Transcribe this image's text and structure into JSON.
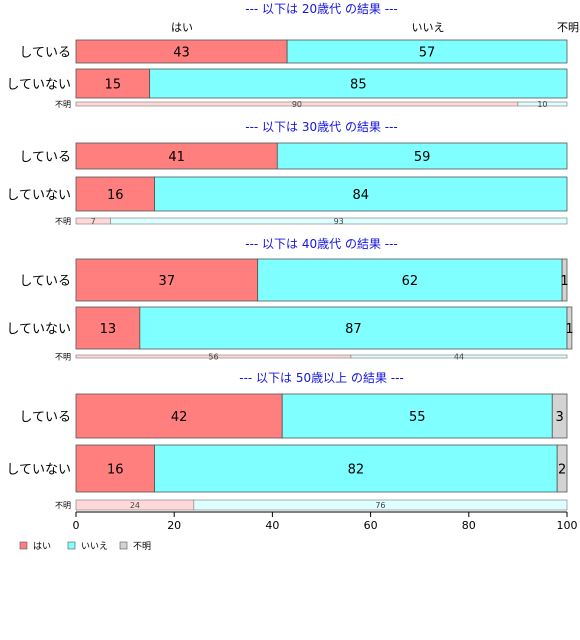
{
  "chart_data": {
    "type": "bar",
    "orientation": "horizontal",
    "stacked": true,
    "percent": true,
    "xlim": [
      0,
      100
    ],
    "xticks": [
      "0",
      "20",
      "40",
      "60",
      "80",
      "100"
    ],
    "column_headers": [
      "はい",
      "いいえ",
      "不明"
    ],
    "legend": {
      "placement": "bottom-left",
      "entries": [
        "はい",
        "いいえ",
        "不明"
      ],
      "colors": [
        "#ff7f7f",
        "#7fffff",
        "#d3d3d3"
      ]
    },
    "colors": {
      "yes": "#ff7f7f",
      "no": "#7fffff",
      "unknown": "#d3d3d3",
      "title": "#1515e0"
    },
    "panels": [
      {
        "title": "--- 以下は 20歳代 の結果 ---",
        "rows": [
          {
            "label": "している",
            "values": [
              43,
              57,
              0
            ],
            "labels": [
              "43",
              "57",
              ""
            ]
          },
          {
            "label": "していない",
            "values": [
              15,
              85,
              0
            ],
            "labels": [
              "15",
              "85",
              ""
            ]
          }
        ],
        "unknown_row": {
          "label": "不明",
          "values": [
            90,
            10
          ],
          "labels": [
            "90",
            "10"
          ]
        }
      },
      {
        "title": "--- 以下は 30歳代 の結果 ---",
        "rows": [
          {
            "label": "している",
            "values": [
              41,
              59,
              0
            ],
            "labels": [
              "41",
              "59",
              ""
            ]
          },
          {
            "label": "していない",
            "values": [
              16,
              84,
              0
            ],
            "labels": [
              "16",
              "84",
              ""
            ]
          }
        ],
        "unknown_row": {
          "label": "不明",
          "values": [
            7,
            93
          ],
          "labels": [
            "7",
            "93"
          ]
        }
      },
      {
        "title": "--- 以下は 40歳代 の結果 ---",
        "rows": [
          {
            "label": "している",
            "values": [
              37,
              62,
              1
            ],
            "labels": [
              "37",
              "62",
              "1"
            ]
          },
          {
            "label": "していない",
            "values": [
              13,
              87,
              1
            ],
            "labels": [
              "13",
              "87",
              "1"
            ]
          }
        ],
        "unknown_row": {
          "label": "不明",
          "values": [
            56,
            44
          ],
          "labels": [
            "56",
            "44"
          ]
        }
      },
      {
        "title": "--- 以下は 50歳以上 の結果 ---",
        "rows": [
          {
            "label": "している",
            "values": [
              42,
              55,
              3
            ],
            "labels": [
              "42",
              "55",
              "3"
            ]
          },
          {
            "label": "していない",
            "values": [
              16,
              82,
              2
            ],
            "labels": [
              "16",
              "82",
              "2"
            ]
          }
        ],
        "unknown_row": {
          "label": "不明",
          "values": [
            24,
            76
          ],
          "labels": [
            "24",
            "76"
          ]
        }
      }
    ]
  }
}
